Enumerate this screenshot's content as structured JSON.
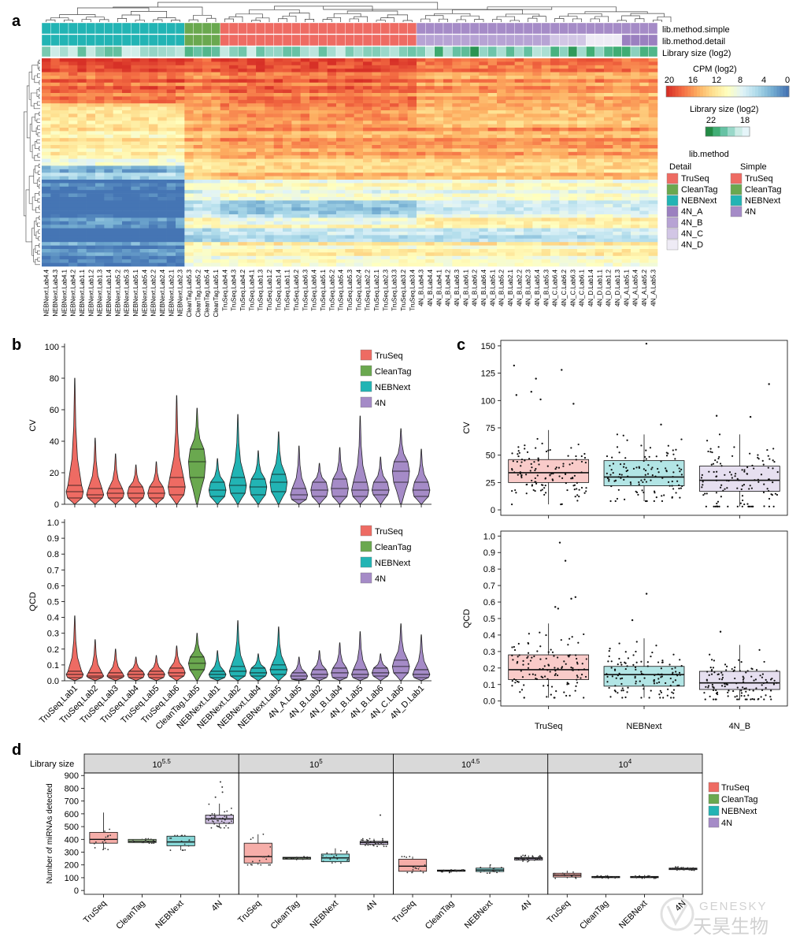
{
  "panel_labels": {
    "a": "a",
    "b": "b",
    "c": "c",
    "d": "d"
  },
  "colors": {
    "TruSeq": "#ee6b63",
    "CleanTag": "#6aa84f",
    "NEBNext": "#22b4b4",
    "4N": "#a58bc7",
    "4N_A": "#9b80c0",
    "4N_B": "#b7a3d4",
    "4N_C": "#d2c6e5",
    "4N_D": "#eeebf5"
  },
  "heatmap": {
    "annotation_labels": [
      "lib.method.simple",
      "lib.method.detail",
      "Library size (log2)"
    ],
    "samples": [
      "NEBNext.Lab4.4",
      "NEBNext.Lab4.3",
      "NEBNext.Lab4.1",
      "NEBNext.Lab4.2",
      "NEBNext.Lab1.1",
      "NEBNext.Lab1.2",
      "NEBNext.Lab1.3",
      "NEBNext.Lab1.4",
      "NEBNext.Lab5.2",
      "NEBNext.Lab5.3",
      "NEBNext.Lab5.1",
      "NEBNext.Lab5.4",
      "NEBNext.Lab2.2",
      "NEBNext.Lab2.4",
      "NEBNext.Lab2.1",
      "NEBNext.Lab2.3",
      "CleanTag.Lab5.3",
      "CleanTag.Lab5.2",
      "CleanTag.Lab5.4",
      "CleanTag.Lab5.1",
      "TruSeq.Lab4.4",
      "TruSeq.Lab4.3",
      "TruSeq.Lab4.2",
      "TruSeq.Lab4.1",
      "TruSeq.Lab1.3",
      "TruSeq.Lab1.2",
      "TruSeq.Lab1.4",
      "TruSeq.Lab1.1",
      "TruSeq.Lab6.2",
      "TruSeq.Lab6.3",
      "TruSeq.Lab6.4",
      "TruSeq.Lab5.1",
      "TruSeq.Lab5.2",
      "TruSeq.Lab5.4",
      "TruSeq.Lab5.3",
      "TruSeq.Lab2.4",
      "TruSeq.Lab2.2",
      "TruSeq.Lab2.1",
      "TruSeq.Lab2.3",
      "TruSeq.Lab3.3",
      "TruSeq.Lab3.2",
      "TruSeq.Lab3.4",
      "4N_B.Lab4.3",
      "4N_B.Lab4.4",
      "4N_B.Lab4.1",
      "4N_B.Lab4.2",
      "4N_B.Lab6.3",
      "4N_B.Lab6.1",
      "4N_B.Lab6.2",
      "4N_B.Lab6.4",
      "4N_B.Lab5.1",
      "4N_B.Lab5.2",
      "4N_B.Lab2.1",
      "4N_B.Lab2.2",
      "4N_B.Lab2.3",
      "4N_B.Lab5.4",
      "4N_B.Lab5.3",
      "4N_C.Lab6.4",
      "4N_C.Lab6.2",
      "4N_C.Lab6.3",
      "4N_C.Lab6.1",
      "4N_D.Lab1.4",
      "4N_D.Lab1.1",
      "4N_D.Lab1.2",
      "4N_D.Lab1.3",
      "4N_A.Lab5.1",
      "4N_A.Lab5.4",
      "4N_A.Lab5.2",
      "4N_A.Lab5.3"
    ],
    "cpm_legend": {
      "title": "CPM (log2)",
      "ticks": [
        "20",
        "16",
        "12",
        "8",
        "4",
        "0"
      ],
      "colors": [
        "#d73027",
        "#f46d43",
        "#fdae61",
        "#fee090",
        "#ffffbf",
        "#e0f3f8",
        "#abd9e9",
        "#74add1",
        "#4575b4"
      ]
    },
    "libsize_legend": {
      "title": "Library size (log2)",
      "ticks": [
        "22",
        "18"
      ],
      "colors": [
        "#238b45",
        "#41ae76",
        "#66c2a4",
        "#99d8c9",
        "#ccece6",
        "#e5f5f9"
      ]
    },
    "method_legend": {
      "title": "lib.method",
      "detail_title": "Detail",
      "simple_title": "Simple",
      "detail": [
        "TruSeq",
        "CleanTag",
        "NEBNext",
        "4N_A",
        "4N_B",
        "4N_C",
        "4N_D"
      ],
      "simple": [
        "TruSeq",
        "CleanTag",
        "NEBNext",
        "4N"
      ]
    }
  },
  "chart_data": [
    {
      "type": "violin",
      "panel": "b-top",
      "ylabel": "CV",
      "ylim": [
        0,
        100
      ],
      "yticks": [
        0,
        20,
        40,
        60,
        80,
        100
      ],
      "categories": [
        "TruSeq.Lab1",
        "TruSeq.Lab2",
        "TruSeq.Lab3",
        "TruSeq.Lab4",
        "TruSeq.Lab5",
        "TruSeq.Lab6",
        "CleanTag.Lab5",
        "NEBNext.Lab1",
        "NEBNext.Lab2",
        "NEBNext.Lab4",
        "NEBNext.Lab5",
        "4N_A.Lab5",
        "4N_B.Lab2",
        "4N_B.Lab4",
        "4N_B.Lab5",
        "4N_B.Lab6",
        "4N_C.Lab6",
        "4N_D.Lab1"
      ],
      "groups": [
        "TruSeq",
        "TruSeq",
        "TruSeq",
        "TruSeq",
        "TruSeq",
        "TruSeq",
        "CleanTag",
        "NEBNext",
        "NEBNext",
        "NEBNext",
        "NEBNext",
        "4N",
        "4N",
        "4N",
        "4N",
        "4N",
        "4N",
        "4N"
      ],
      "max": [
        80,
        42,
        32,
        25,
        27,
        69,
        61,
        29,
        57,
        34,
        46,
        37,
        26,
        36,
        56,
        30,
        48,
        35
      ],
      "q1": [
        4,
        4,
        4,
        4,
        4,
        6,
        17,
        5,
        7,
        6,
        8,
        3,
        5,
        5,
        5,
        6,
        14,
        5
      ],
      "median": [
        8,
        6,
        7,
        7,
        7,
        11,
        27,
        9,
        12,
        11,
        14,
        6,
        9,
        10,
        9,
        9,
        21,
        9
      ],
      "q3": [
        12,
        10,
        10,
        11,
        11,
        17,
        35,
        14,
        17,
        16,
        19,
        10,
        14,
        16,
        14,
        14,
        27,
        14
      ],
      "legend": [
        "TruSeq",
        "CleanTag",
        "NEBNext",
        "4N"
      ]
    },
    {
      "type": "violin",
      "panel": "b-bottom",
      "ylabel": "QCD",
      "ylim": [
        0,
        1.0
      ],
      "yticks": [
        0.0,
        0.1,
        0.2,
        0.3,
        0.4,
        0.5,
        0.6,
        0.7,
        0.8,
        0.9,
        1.0
      ],
      "categories": [
        "TruSeq.Lab1",
        "TruSeq.Lab2",
        "TruSeq.Lab3",
        "TruSeq.Lab4",
        "TruSeq.Lab5",
        "TruSeq.Lab6",
        "CleanTag.Lab5",
        "NEBNext.Lab1",
        "NEBNext.Lab2",
        "NEBNext.Lab4",
        "NEBNext.Lab5",
        "4N_A.Lab5",
        "4N_B.Lab2",
        "4N_B.Lab4",
        "4N_B.Lab5",
        "4N_B.Lab6",
        "4N_C.Lab6",
        "4N_D.Lab1"
      ],
      "groups": [
        "TruSeq",
        "TruSeq",
        "TruSeq",
        "TruSeq",
        "TruSeq",
        "TruSeq",
        "CleanTag",
        "NEBNext",
        "NEBNext",
        "NEBNext",
        "NEBNext",
        "4N",
        "4N",
        "4N",
        "4N",
        "4N",
        "4N",
        "4N"
      ],
      "max": [
        0.41,
        0.26,
        0.2,
        0.15,
        0.16,
        0.22,
        0.3,
        0.19,
        0.38,
        0.17,
        0.34,
        0.15,
        0.19,
        0.24,
        0.31,
        0.17,
        0.36,
        0.29
      ],
      "q1": [
        0.02,
        0.02,
        0.02,
        0.02,
        0.02,
        0.03,
        0.07,
        0.02,
        0.03,
        0.03,
        0.04,
        0.01,
        0.02,
        0.02,
        0.02,
        0.03,
        0.05,
        0.02
      ],
      "median": [
        0.04,
        0.03,
        0.03,
        0.04,
        0.04,
        0.05,
        0.11,
        0.04,
        0.06,
        0.05,
        0.07,
        0.03,
        0.04,
        0.05,
        0.04,
        0.05,
        0.09,
        0.04
      ],
      "q3": [
        0.06,
        0.05,
        0.05,
        0.06,
        0.06,
        0.08,
        0.15,
        0.06,
        0.09,
        0.08,
        0.1,
        0.05,
        0.07,
        0.08,
        0.07,
        0.08,
        0.13,
        0.07
      ],
      "legend": [
        "TruSeq",
        "CleanTag",
        "NEBNext",
        "4N"
      ]
    },
    {
      "type": "boxplot",
      "panel": "c-top",
      "ylabel": "CV",
      "ylim": [
        -5,
        155
      ],
      "yticks": [
        0,
        25,
        50,
        75,
        100,
        125,
        150
      ],
      "categories": [
        "TruSeq",
        "NEBNext",
        "4N_B"
      ],
      "q1": [
        25,
        22,
        17
      ],
      "median": [
        34,
        30,
        27
      ],
      "q3": [
        46,
        45,
        40
      ],
      "whisker_low": [
        5,
        8,
        3
      ],
      "whisker_high": [
        73,
        69,
        69
      ],
      "outliers": [
        [
          132,
          128,
          120,
          108,
          105,
          101,
          97
        ],
        [
          152,
          78
        ],
        [
          115,
          86,
          85
        ]
      ]
    },
    {
      "type": "boxplot",
      "panel": "c-bottom",
      "ylabel": "QCD",
      "ylim": [
        -0.03,
        1.03
      ],
      "yticks": [
        0.0,
        0.1,
        0.2,
        0.3,
        0.4,
        0.5,
        0.6,
        0.7,
        0.8,
        0.9,
        1.0
      ],
      "categories": [
        "TruSeq",
        "NEBNext",
        "4N_B"
      ],
      "q1": [
        0.13,
        0.09,
        0.07
      ],
      "median": [
        0.19,
        0.16,
        0.11
      ],
      "q3": [
        0.28,
        0.21,
        0.18
      ],
      "whisker_low": [
        0.02,
        0.02,
        0.01
      ],
      "whisker_high": [
        0.47,
        0.38,
        0.34
      ],
      "outliers": [
        [
          0.96,
          0.85,
          0.63,
          0.62,
          0.57,
          0.56
        ],
        [
          0.65,
          0.49
        ],
        [
          0.42
        ]
      ]
    },
    {
      "type": "boxplot",
      "panel": "d",
      "facet_label": "Library size",
      "facets": [
        {
          "label_base": "10",
          "label_exp": "5.5"
        },
        {
          "label_base": "10",
          "label_exp": "5"
        },
        {
          "label_base": "10",
          "label_exp": "4.5"
        },
        {
          "label_base": "10",
          "label_exp": "4"
        }
      ],
      "ylabel": "Number of miRNAs detected",
      "ylim": [
        -30,
        920
      ],
      "yticks": [
        0,
        100,
        200,
        300,
        400,
        500,
        600,
        700,
        800,
        900
      ],
      "categories": [
        "TruSeq",
        "CleanTag",
        "NEBNext",
        "4N"
      ],
      "q1": [
        [
          370,
          375,
          350,
          525
        ],
        [
          215,
          245,
          225,
          360
        ],
        [
          150,
          150,
          148,
          238
        ],
        [
          105,
          100,
          100,
          163
        ]
      ],
      "median": [
        [
          400,
          385,
          380,
          560
        ],
        [
          265,
          255,
          255,
          375
        ],
        [
          190,
          155,
          160,
          250
        ],
        [
          120,
          105,
          105,
          170
        ]
      ],
      "q3": [
        [
          455,
          400,
          425,
          590
        ],
        [
          370,
          260,
          285,
          385
        ],
        [
          245,
          160,
          175,
          258
        ],
        [
          135,
          110,
          110,
          175
        ]
      ],
      "whisker_low": [
        [
          320,
          370,
          315,
          490
        ],
        [
          200,
          235,
          215,
          345
        ],
        [
          140,
          140,
          135,
          225
        ],
        [
          95,
          95,
          92,
          158
        ]
      ],
      "whisker_high": [
        [
          610,
          405,
          430,
          680
        ],
        [
          440,
          265,
          330,
          405
        ],
        [
          265,
          162,
          200,
          275
        ],
        [
          155,
          115,
          120,
          185
        ]
      ],
      "outliers": [
        [
          [],
          [],
          [],
          [
            850,
            810,
            770,
            730
          ]
        ],
        [
          [],
          [],
          [],
          [
            590
          ]
        ],
        [
          [],
          [],
          [],
          []
        ],
        [
          [],
          [],
          [],
          []
        ]
      ],
      "legend": [
        "TruSeq",
        "CleanTag",
        "NEBNext",
        "4N"
      ]
    }
  ],
  "watermark": {
    "brand": "GENESKY",
    "chinese": "天昊生物"
  }
}
